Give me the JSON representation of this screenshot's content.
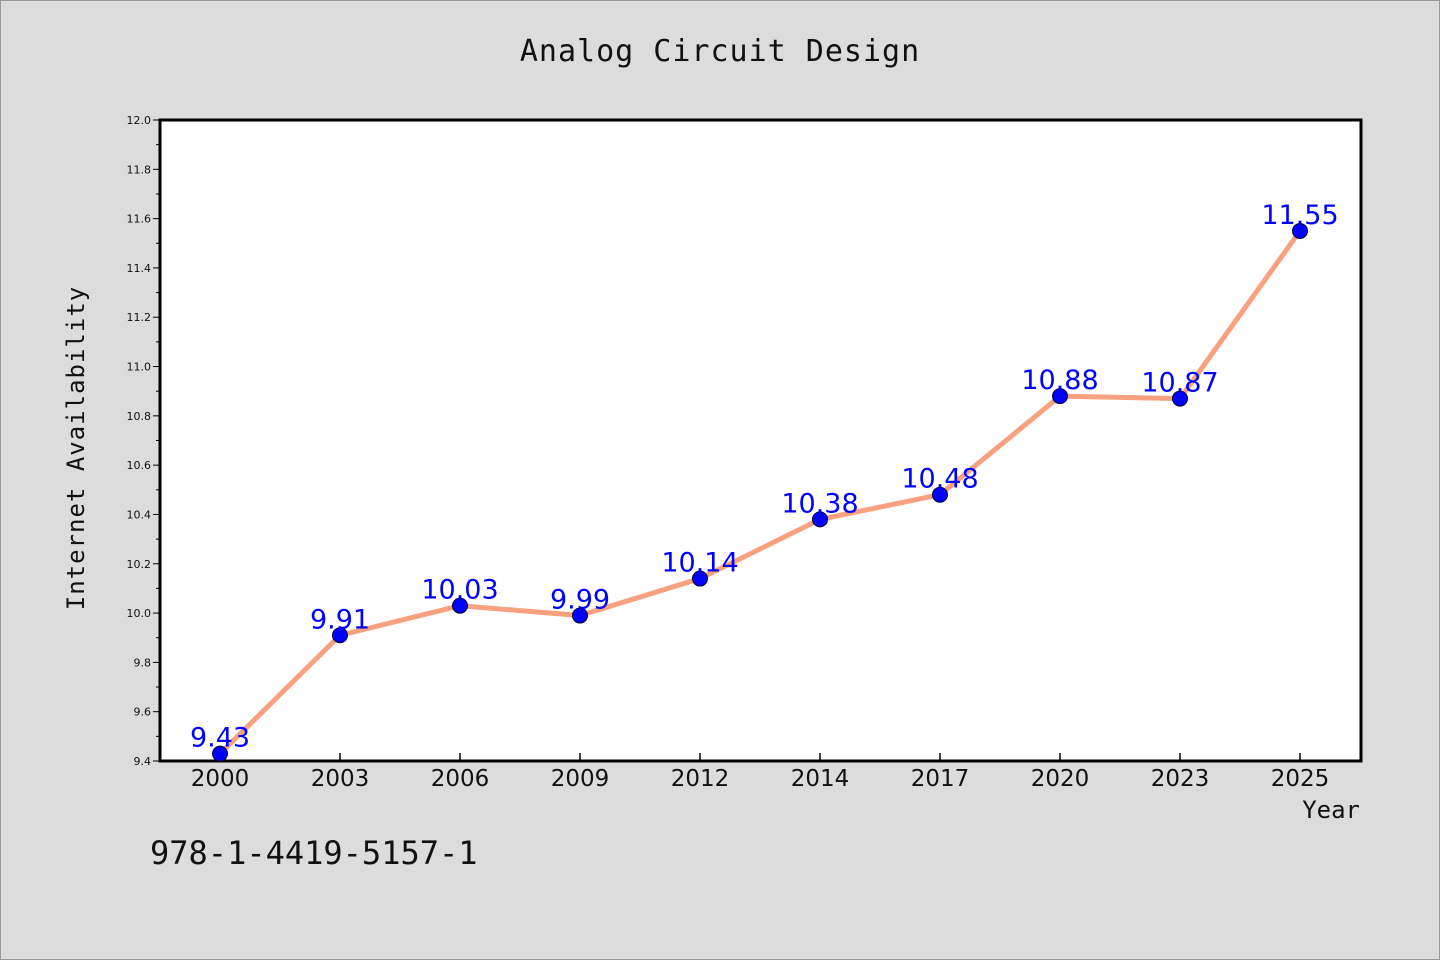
{
  "page": {
    "isbn": "978-1-4419-5157-1"
  },
  "colors": {
    "background": "#dcdcdc",
    "plot_background": "#ffffff",
    "line": "#f9a07e",
    "marker": "#0000ff",
    "data_label": "#0000ff"
  },
  "chart_data": {
    "type": "line",
    "title": "Analog Circuit Design",
    "xlabel": "Year",
    "ylabel": "Internet Availability",
    "categories": [
      "2000",
      "2003",
      "2006",
      "2009",
      "2012",
      "2014",
      "2017",
      "2020",
      "2023",
      "2025"
    ],
    "series": [
      {
        "values": [
          9.43,
          9.91,
          10.03,
          9.99,
          10.14,
          10.38,
          10.48,
          10.88,
          10.87,
          11.55
        ],
        "labels": [
          "9.43",
          "9.91",
          "10.03",
          "9.99",
          "10.14",
          "10.38",
          "10.48",
          "10.88",
          "10.87",
          "11.55"
        ]
      }
    ],
    "ylim": [
      9.4,
      12.0
    ],
    "yticks": [
      "9.4",
      "9.6",
      "9.8",
      "10.0",
      "10.2",
      "10.4",
      "10.6",
      "10.8",
      "11.0",
      "11.2",
      "11.4",
      "11.6",
      "11.8",
      "12.0"
    ],
    "grid": false,
    "legend": "none",
    "markers": "circle"
  }
}
